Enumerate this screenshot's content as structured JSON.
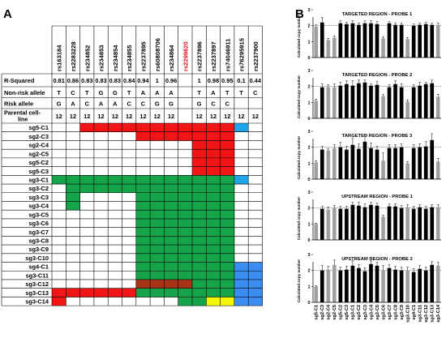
{
  "panel_a": {
    "label": "A",
    "snps": [
      "rs163184",
      "rs2283228",
      "rs234852",
      "rs234853",
      "rs234854",
      "rs234855",
      "rs2237895",
      "rs60808706",
      "rs234864",
      "rs2299620",
      "rs2237896",
      "rs2237897",
      "rs74046911",
      "rs76295915",
      "rs2237900"
    ],
    "highlight_snp": "rs2299620",
    "highlight_color": "#e8141b",
    "info_rows": [
      {
        "label": "R-Squared",
        "values": [
          "0.81",
          "0.86",
          "0.83",
          "0.83",
          "0.83",
          "0.84",
          "0.94",
          "1",
          "0.96",
          "",
          "1",
          "0.98",
          "0.95",
          "0.1",
          "0.44"
        ]
      },
      {
        "label": "Non-risk allele",
        "values": [
          "T",
          "C",
          "T",
          "G",
          "G",
          "T",
          "A",
          "A",
          "A",
          "",
          "T",
          "A",
          "T",
          "T",
          "C"
        ]
      },
      {
        "label": "Risk allele",
        "values": [
          "G",
          "A",
          "C",
          "A",
          "A",
          "C",
          "C",
          "G",
          "G",
          "",
          "G",
          "C",
          "C",
          "",
          ""
        ]
      },
      {
        "label": "Parental cell-line",
        "values": [
          "12",
          "12",
          "12",
          "12",
          "12",
          "12",
          "12",
          "12",
          "12",
          "",
          "12",
          "12",
          "12",
          "12",
          "12"
        ]
      }
    ],
    "clones": [
      "sg5-C1",
      "sg2-C3",
      "sg2-C4",
      "sg2-C5",
      "sg5-C2",
      "sg5-C3",
      "sg3-C1",
      "sg3-C2",
      "sg3-C3",
      "sg3-C4",
      "sg3-C5",
      "sg3-C6",
      "sg3-C7",
      "sg3-C8",
      "sg3-C9",
      "sg3-C10",
      "sg4-C1",
      "sg3-C11",
      "sg3-C12",
      "sg3-C13",
      "sg3-C14"
    ],
    "colors": {
      "red": "#f21515",
      "green": "#16a34a",
      "blue": "#3b8df2",
      "cyan": "#1fa6e8",
      "dark_red": "#a83418",
      "yellow": "#f5f50a",
      "white": "#ffffff"
    }
  },
  "panel_b": {
    "label": "B",
    "y_axis_label": "Calculated copy number",
    "x_categories": [
      "sg5-C1",
      "sg2-C3",
      "sg2-C4",
      "sg2-C5",
      "sg5-C2",
      "sg5-C3",
      "sg3-C1",
      "sg3-C2",
      "sg3-C3",
      "sg3-C4",
      "sg3-C5",
      "sg3-C6",
      "sg3-C7",
      "sg3-C8",
      "sg3-C9",
      "sg3-C10",
      "sg4-C1",
      "sg3-C11",
      "sg3-C12",
      "sg3-C13",
      "sg3-C14"
    ],
    "bar_colors": {
      "black": "#000000",
      "grey": "#a0a0a0"
    },
    "grey_indices": [
      0,
      2,
      3,
      11,
      15,
      20
    ],
    "chart_data": [
      {
        "type": "bar",
        "title": "TARGETED REGION - PROBE 1",
        "ylim": [
          0,
          3
        ],
        "yticks": [
          0,
          1,
          2,
          3
        ],
        "values": [
          1.95,
          2.2,
          1.1,
          1.25,
          2.15,
          2.1,
          2.15,
          2.05,
          2.15,
          2.15,
          2.1,
          1.2,
          2.15,
          2.05,
          2.05,
          1.15,
          2.0,
          2.05,
          2.1,
          2.05,
          2.05
        ],
        "errors": [
          0.1,
          0.3,
          0.1,
          0.1,
          0.15,
          0.1,
          0.15,
          0.1,
          0.15,
          0.15,
          0.15,
          0.1,
          0.1,
          0.1,
          0.1,
          0.1,
          0.1,
          0.1,
          0.1,
          0.1,
          0.1
        ]
      },
      {
        "type": "bar",
        "title": "TARGETED REGION - PROBE 2",
        "ylim": [
          0,
          3
        ],
        "yticks": [
          0,
          1,
          2,
          3
        ],
        "values": [
          1.1,
          1.95,
          1.95,
          1.95,
          2.05,
          2.15,
          2.05,
          2.2,
          2.25,
          2.05,
          2.1,
          1.4,
          1.95,
          2.15,
          1.95,
          1.05,
          1.95,
          2.05,
          2.15,
          2.2,
          1.35
        ],
        "errors": [
          0.1,
          0.2,
          0.15,
          0.2,
          0.2,
          0.2,
          0.3,
          0.2,
          0.15,
          0.1,
          0.2,
          0.1,
          0.15,
          0.2,
          0.2,
          0.1,
          0.15,
          0.2,
          0.1,
          0.2,
          0.15
        ]
      },
      {
        "type": "bar",
        "title": "TARGETED REGION - PROBE 3",
        "ylim": [
          0,
          3
        ],
        "yticks": [
          0,
          1,
          2,
          3
        ],
        "values": [
          1.05,
          1.85,
          1.8,
          1.95,
          2.0,
          1.85,
          2.15,
          1.9,
          2.35,
          1.95,
          1.85,
          1.15,
          1.95,
          1.95,
          2.0,
          1.0,
          1.95,
          2.0,
          2.05,
          2.45,
          1.1
        ],
        "errors": [
          0.1,
          0.2,
          0.1,
          0.2,
          0.3,
          0.2,
          0.4,
          0.3,
          0.4,
          0.3,
          0.2,
          0.5,
          0.2,
          0.2,
          0.2,
          0.1,
          0.2,
          0.2,
          0.3,
          0.4,
          0.2
        ]
      },
      {
        "type": "bar",
        "title": "UPSTREAM REGION - PROBE 1",
        "ylim": [
          0,
          3
        ],
        "yticks": [
          0,
          1,
          2,
          3
        ],
        "values": [
          1.0,
          1.95,
          1.9,
          2.05,
          1.95,
          1.95,
          2.2,
          2.15,
          2.05,
          2.2,
          2.15,
          1.45,
          2.1,
          2.1,
          2.0,
          2.05,
          1.95,
          2.05,
          1.95,
          2.05,
          2.05
        ],
        "errors": [
          0.05,
          0.15,
          0.15,
          0.1,
          0.15,
          0.15,
          0.15,
          0.2,
          0.2,
          0.15,
          0.15,
          0.1,
          0.15,
          0.15,
          0.15,
          0.15,
          0.15,
          0.15,
          0.15,
          0.15,
          0.15
        ]
      },
      {
        "type": "bar",
        "title": "UPSTREAM REGION - PROBE 2",
        "ylim": [
          0,
          3
        ],
        "yticks": [
          0,
          1,
          2,
          3
        ],
        "values": [
          1.0,
          2.0,
          2.05,
          2.35,
          2.0,
          2.05,
          2.3,
          2.15,
          1.95,
          2.4,
          2.3,
          2.0,
          2.15,
          2.05,
          2.0,
          2.0,
          1.9,
          2.1,
          2.0,
          2.35,
          2.3
        ],
        "errors": [
          0.05,
          0.3,
          0.2,
          0.3,
          0.2,
          0.2,
          0.3,
          0.2,
          0.2,
          0.2,
          0.2,
          0.3,
          0.2,
          0.2,
          0.2,
          0.2,
          0.2,
          0.2,
          0.2,
          0.2,
          0.2
        ]
      }
    ]
  }
}
